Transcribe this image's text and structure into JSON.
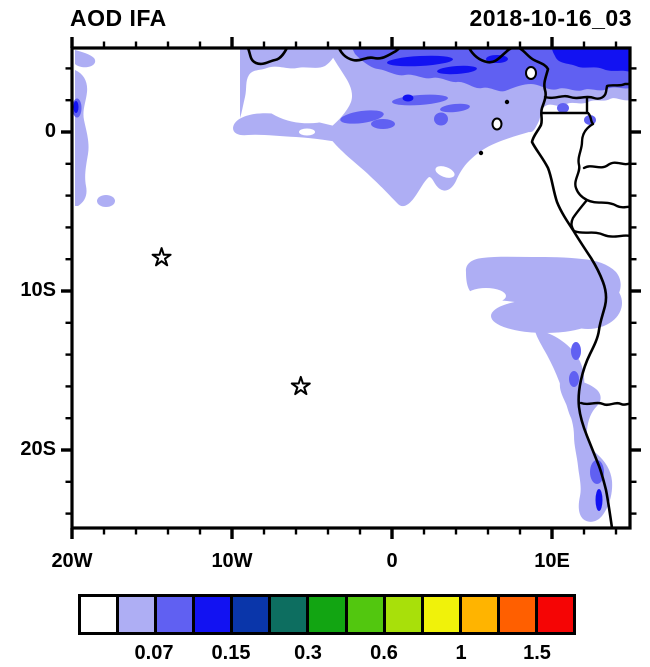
{
  "header": {
    "title": "AOD IFA",
    "date": "2018-10-16_03"
  },
  "axes": {
    "x": {
      "labels": [
        {
          "text": "20W",
          "lon": -20
        },
        {
          "text": "10W",
          "lon": -10
        },
        {
          "text": "0",
          "lon": 0
        },
        {
          "text": "10E",
          "lon": 10
        }
      ],
      "minor_tick_interval_deg": 2
    },
    "y": {
      "labels": [
        {
          "text": "0",
          "lat": 0
        },
        {
          "text": "10S",
          "lat": -10
        },
        {
          "text": "20S",
          "lat": -20
        }
      ],
      "minor_tick_interval_deg": 2
    }
  },
  "markers": [
    {
      "name": "star-ascension-island",
      "symbol": "open-star",
      "lon": -14.4,
      "lat": -7.9
    },
    {
      "name": "star-st-helena",
      "symbol": "open-star",
      "lon": -5.7,
      "lat": -16.0
    }
  ],
  "colorbar": {
    "colors": [
      "#ffffff",
      "#aeaef4",
      "#6060f2",
      "#1212f2",
      "#0a36aa",
      "#0d6e60",
      "#12a512",
      "#52c70f",
      "#a8e00a",
      "#f0f20a",
      "#ffb400",
      "#ff5f00",
      "#f50505"
    ],
    "labels": [
      {
        "text": "0.07",
        "boundary_index": 2
      },
      {
        "text": "0.15",
        "boundary_index": 4
      },
      {
        "text": "0.3",
        "boundary_index": 6
      },
      {
        "text": "0.6",
        "boundary_index": 8
      },
      {
        "text": "1",
        "boundary_index": 10
      },
      {
        "text": "1.5",
        "boundary_index": 12
      }
    ]
  },
  "chart_data": {
    "type": "heatmap",
    "title": "AOD IFA",
    "timestamp_label": "2018-10-16_03",
    "variable": "Aerosol Optical Depth (filled contours over lat-lon map)",
    "lon_range_deg": [
      -20,
      15
    ],
    "lat_range_deg": [
      -25,
      5.2
    ],
    "x_tick_labels": [
      "20W",
      "10W",
      "0",
      "10E"
    ],
    "y_tick_labels": [
      "0",
      "10S",
      "20S"
    ],
    "minor_tick_interval_deg": 2,
    "grid": false,
    "legend_position": "bottom colorbar",
    "colorbar_boundary_labels": [
      "0.07",
      "0.15",
      "0.3",
      "0.6",
      "1",
      "1.5"
    ],
    "colorbar_colors": [
      "#ffffff",
      "#aeaef4",
      "#6060f2",
      "#1212f2",
      "#0a36aa",
      "#0d6e60",
      "#12a512",
      "#52c70f",
      "#a8e00a",
      "#f0f20a",
      "#ffb400",
      "#ff5f00",
      "#f50505"
    ],
    "markers": [
      {
        "symbol": "open-star",
        "lon": -14.4,
        "lat": -7.9
      },
      {
        "symbol": "open-star",
        "lon": -5.7,
        "lat": -16.0
      }
    ],
    "shaded_regions": [
      {
        "color": "#aeaef4",
        "description": "broad low-AOD plume across the Gulf of Guinea from ~5W to the eastern edge between ~5N and ~5S, with white holes near 12W-2W/0-3N; thin strip along the west (20W) edge from ~1N to 5S; coastal plume over Angola ~8S-14S reaching inland, and a narrow strip along the Namibia coast ~17S-25S"
      },
      {
        "color": "#6060f2",
        "description": "band along ~3N-5N east of ~3W and small embedded patches (near 4W/2N, 3E/1N, 11E/1.5N, and along the Angola-Namibia coast)"
      },
      {
        "color": "#1212f2",
        "description": "narrow band hugging the top edge (~5N) from ~10E to 15E, thin streaks near 1E-5E/4-5N, tiny coastal sliver near 23S"
      }
    ],
    "basemap": "African west coast (Gulf of Guinea to Namibia) with country borders; islands: Bioko, Principe, Sao Tome, Annobon"
  }
}
